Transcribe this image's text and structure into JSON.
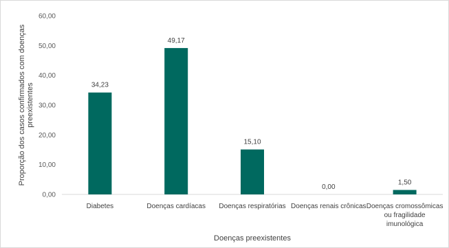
{
  "chart_data": {
    "type": "bar",
    "xlabel": "Doenças preexistentes",
    "ylabel": "Proporção dos casos confirmados com doenças preexistentes",
    "categories": [
      "Diabetes",
      "Doenças cardíacas",
      "Doenças respiratórias",
      "Doenças renais crônicas",
      "Doenças cromossômicas ou fragilidade imunológica"
    ],
    "category_lines": [
      [
        "Diabetes"
      ],
      [
        "Doenças cardíacas"
      ],
      [
        "Doenças respiratórias"
      ],
      [
        "Doenças renais crônicas"
      ],
      [
        "Doenças cromossômicas",
        "ou fragilidade",
        "imunológica"
      ]
    ],
    "values": [
      34.23,
      49.17,
      15.1,
      0.0,
      1.5
    ],
    "data_labels": [
      "34,23",
      "49,17",
      "15,10",
      "0,00",
      "1,50"
    ],
    "ylim": [
      0,
      60
    ],
    "yticks": [
      0,
      10,
      20,
      30,
      40,
      50,
      60
    ],
    "ytick_labels": [
      "0,00",
      "10,00",
      "20,00",
      "30,00",
      "40,00",
      "50,00",
      "60,00"
    ],
    "ylabel_lines": [
      "Proporção dos casos confirmados com doenças",
      "preexistentes"
    ],
    "grid": false,
    "legend": "none",
    "bar_color": "#00695F"
  }
}
